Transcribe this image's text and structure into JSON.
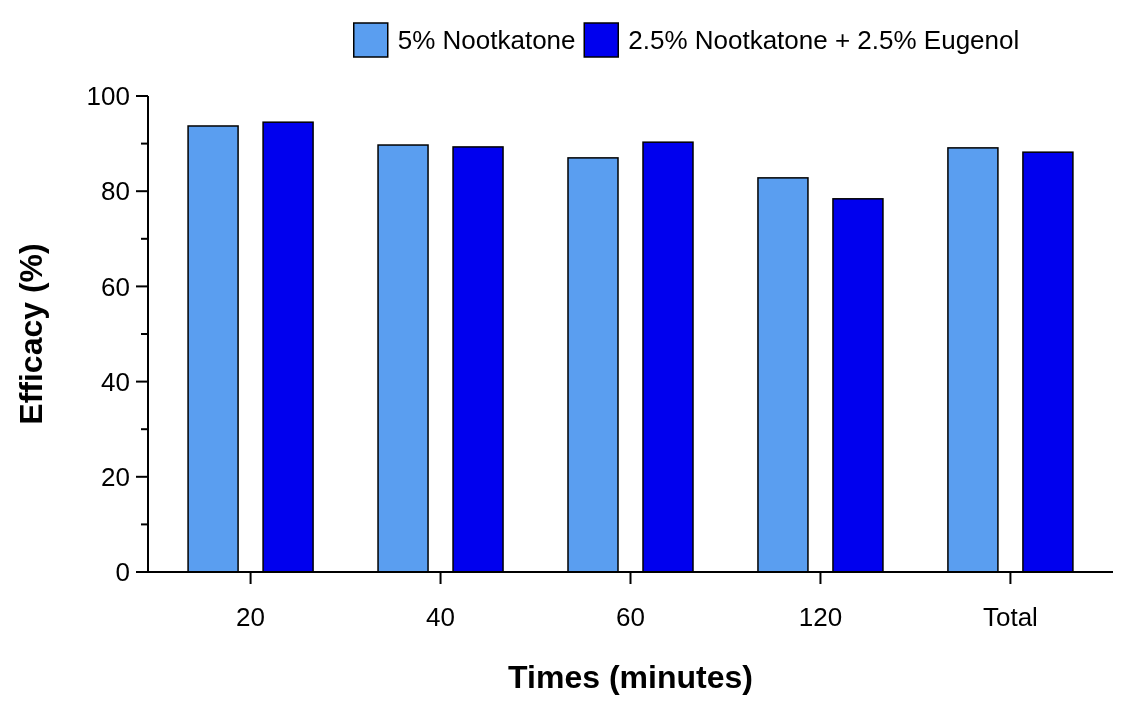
{
  "chart_data": {
    "type": "bar",
    "xlabel": "Times (minutes)",
    "ylabel": "Efficacy (%)",
    "categories": [
      "20",
      "40",
      "60",
      "120",
      "Total"
    ],
    "series": [
      {
        "name": "5% Nootkatone",
        "color": "#5a9ef0",
        "values": [
          93.7,
          89.7,
          87.0,
          82.8,
          89.1
        ]
      },
      {
        "name": "2.5% Nootkatone + 2.5% Eugenol",
        "color": "#0000ee",
        "values": [
          94.5,
          89.3,
          90.3,
          78.4,
          88.2
        ]
      }
    ],
    "ylim": [
      0,
      100
    ],
    "yticks": [
      0,
      {
        "value": 10,
        "label": null
      },
      20,
      {
        "value": 30,
        "label": null
      },
      40,
      {
        "value": 50,
        "label": null
      },
      60,
      {
        "value": 70,
        "label": null
      },
      80,
      {
        "value": 90,
        "label": null
      },
      100
    ],
    "grid": false,
    "legend": "top"
  }
}
